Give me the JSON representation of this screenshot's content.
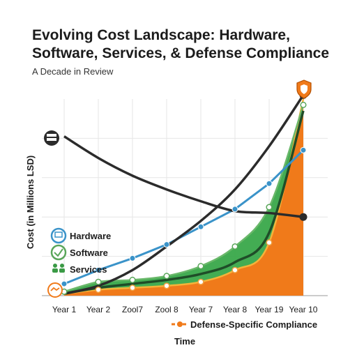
{
  "chart_data": {
    "type": "line",
    "title": "Evolving Cost Landscape: Hardware, Software, Services, & Defense Compliance",
    "subtitle": "A Decade in Review",
    "xlabel": "Time",
    "ylabel": "Cost  (in Millions LSD)",
    "categories": [
      "Year 1",
      "Year 2",
      "Zool7",
      "Zool 8",
      "Year 7",
      "Year 8",
      "Year 19",
      "Year 10"
    ],
    "ylim": [
      0,
      100
    ],
    "grid": true,
    "legend_position": "left-bottom",
    "series": [
      {
        "name": "Hardware",
        "color": "#3a93c9",
        "values": [
          6,
          13,
          19,
          26,
          35,
          44,
          57,
          74
        ]
      },
      {
        "name": "Software",
        "color": "#5aa65a",
        "values": [
          2,
          7,
          8,
          10,
          15,
          25,
          45,
          97
        ]
      },
      {
        "name": "Services",
        "color": "#1f4d28",
        "values": [
          1,
          4,
          6,
          8,
          11,
          17,
          32,
          94
        ]
      },
      {
        "name": "Defense-Specific Compliance",
        "color": "#f07a1a",
        "values": [
          1,
          3,
          4,
          5,
          7,
          13,
          27,
          100
        ]
      }
    ],
    "trend_lines": [
      {
        "color": "#2b2b2b",
        "values": [
          81,
          70,
          61,
          54,
          48,
          43,
          42,
          40
        ]
      },
      {
        "color": "#2b2b2b",
        "values": [
          1,
          5,
          13,
          25,
          38,
          54,
          76,
          102
        ]
      }
    ]
  }
}
